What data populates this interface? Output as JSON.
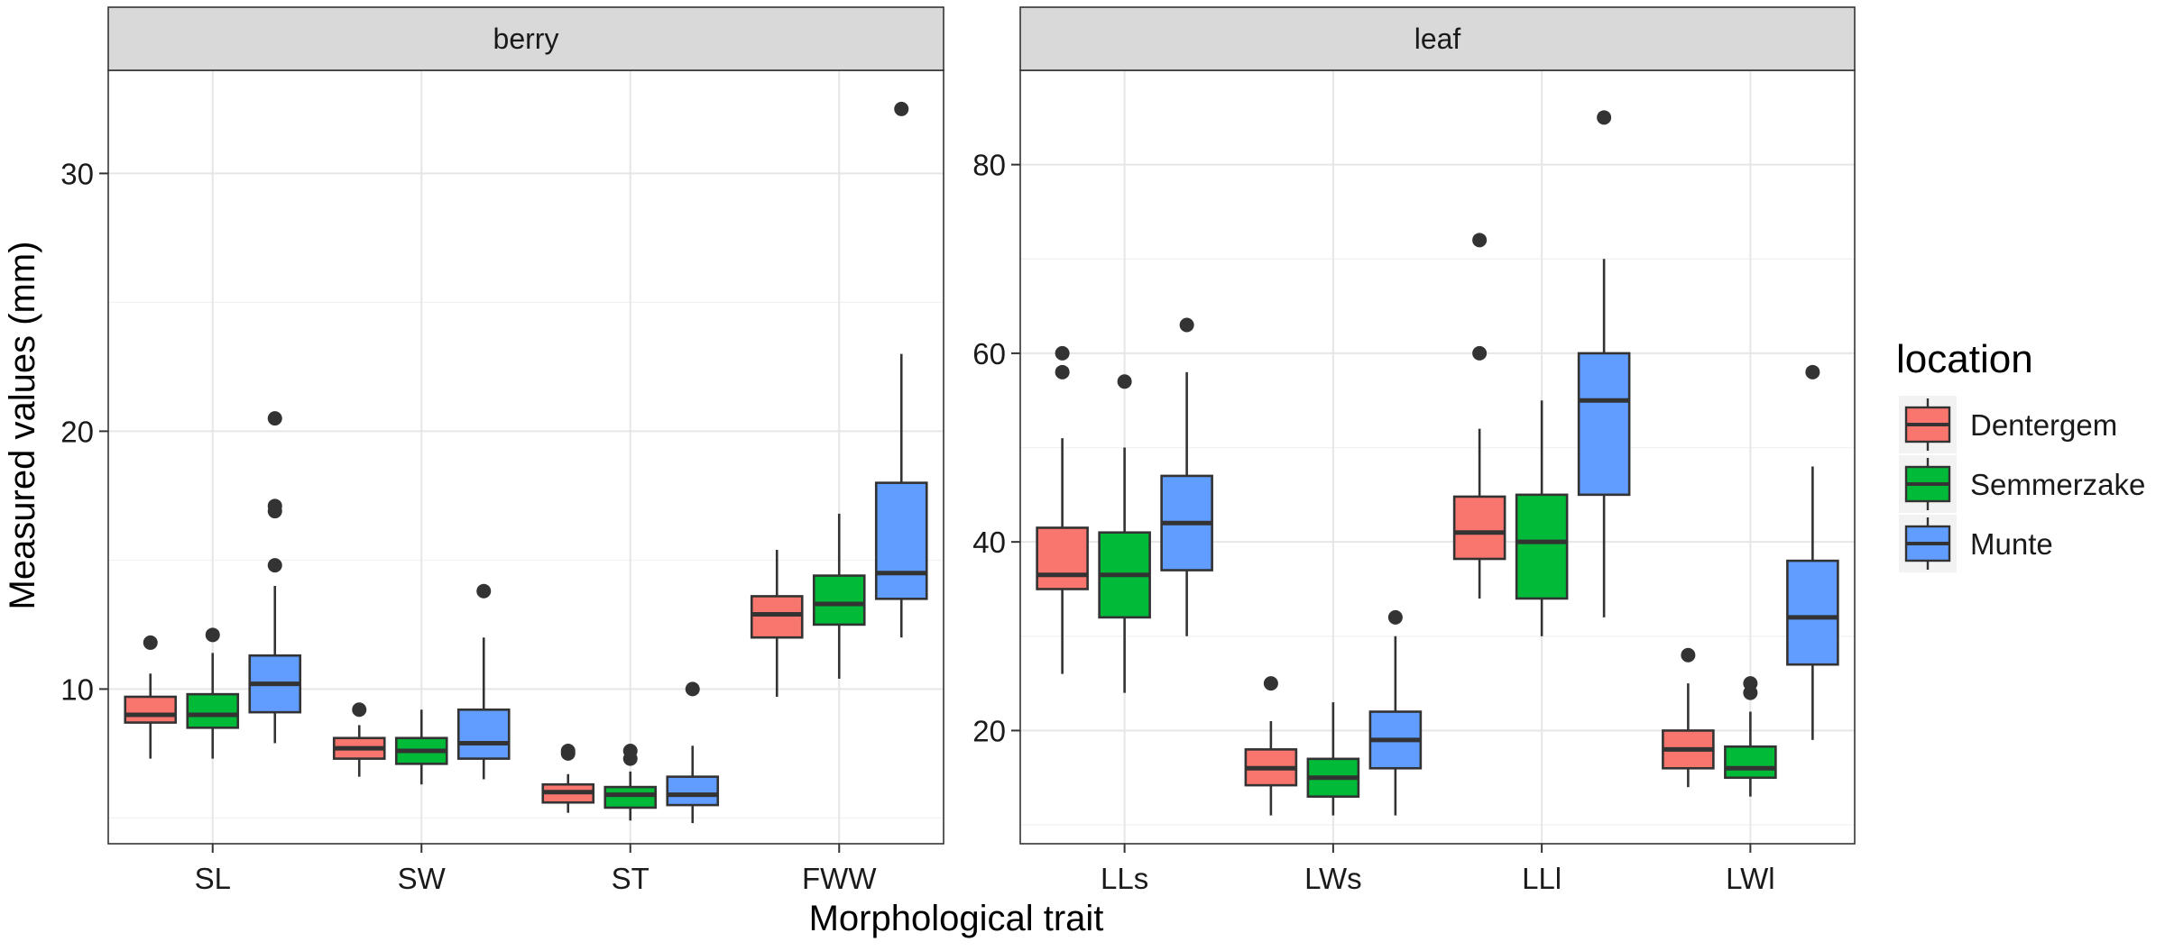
{
  "chart_data": {
    "type": "boxplot",
    "ylabel": "Measured values (mm)",
    "xlabel": "Morphological trait",
    "legend": {
      "title": "location",
      "position": "right",
      "entries": [
        {
          "name": "Dentergem",
          "color": "#F8766D"
        },
        {
          "name": "Semmerzake",
          "color": "#00BA38"
        },
        {
          "name": "Munte",
          "color": "#619CFF"
        }
      ]
    },
    "facets": [
      {
        "title": "berry",
        "ylim": [
          4,
          34
        ],
        "yticks": [
          10,
          20,
          30
        ],
        "categories": [
          "SL",
          "SW",
          "ST",
          "FWW"
        ],
        "groups": [
          [
            {
              "min": 7.3,
              "q1": 8.7,
              "median": 9.0,
              "q3": 9.7,
              "max": 10.6,
              "outliers": [
                11.8
              ]
            },
            {
              "min": 7.3,
              "q1": 8.5,
              "median": 9.0,
              "q3": 9.8,
              "max": 11.4,
              "outliers": [
                12.1
              ]
            },
            {
              "min": 7.9,
              "q1": 9.1,
              "median": 10.2,
              "q3": 11.3,
              "max": 14.0,
              "outliers": [
                14.8,
                16.9,
                17.1,
                20.5
              ]
            }
          ],
          [
            {
              "min": 6.6,
              "q1": 7.3,
              "median": 7.7,
              "q3": 8.1,
              "max": 8.6,
              "outliers": [
                9.2
              ]
            },
            {
              "min": 6.3,
              "q1": 7.1,
              "median": 7.6,
              "q3": 8.1,
              "max": 9.2,
              "outliers": []
            },
            {
              "min": 6.5,
              "q1": 7.3,
              "median": 7.9,
              "q3": 9.2,
              "max": 12.0,
              "outliers": [
                13.8
              ]
            }
          ],
          [
            {
              "min": 5.2,
              "q1": 5.6,
              "median": 6.0,
              "q3": 6.3,
              "max": 6.7,
              "outliers": [
                7.5,
                7.6
              ]
            },
            {
              "min": 4.9,
              "q1": 5.4,
              "median": 5.9,
              "q3": 6.2,
              "max": 6.8,
              "outliers": [
                7.3,
                7.6
              ]
            },
            {
              "min": 4.8,
              "q1": 5.5,
              "median": 5.9,
              "q3": 6.6,
              "max": 7.8,
              "outliers": [
                10.0
              ]
            }
          ],
          [
            {
              "min": 9.7,
              "q1": 12.0,
              "median": 12.9,
              "q3": 13.6,
              "max": 15.4,
              "outliers": []
            },
            {
              "min": 10.4,
              "q1": 12.5,
              "median": 13.3,
              "q3": 14.4,
              "max": 16.8,
              "outliers": []
            },
            {
              "min": 12.0,
              "q1": 13.5,
              "median": 14.5,
              "q3": 18.0,
              "max": 23.0,
              "outliers": [
                32.5
              ]
            }
          ]
        ]
      },
      {
        "title": "leaf",
        "ylim": [
          8,
          90
        ],
        "yticks": [
          20,
          40,
          60,
          80
        ],
        "categories": [
          "LLs",
          "LWs",
          "LLl",
          "LWl"
        ],
        "groups": [
          [
            {
              "min": 26,
              "q1": 35,
              "median": 36.5,
              "q3": 41.5,
              "max": 51,
              "outliers": [
                58,
                60
              ]
            },
            {
              "min": 24,
              "q1": 32,
              "median": 36.5,
              "q3": 41,
              "max": 50,
              "outliers": [
                57
              ]
            },
            {
              "min": 30,
              "q1": 37,
              "median": 42,
              "q3": 47,
              "max": 58,
              "outliers": [
                63
              ]
            }
          ],
          [
            {
              "min": 11,
              "q1": 14.2,
              "median": 16,
              "q3": 18,
              "max": 21,
              "outliers": [
                25
              ]
            },
            {
              "min": 11,
              "q1": 13,
              "median": 15,
              "q3": 17,
              "max": 23,
              "outliers": []
            },
            {
              "min": 11,
              "q1": 16,
              "median": 19,
              "q3": 22,
              "max": 30,
              "outliers": [
                32
              ]
            }
          ],
          [
            {
              "min": 34,
              "q1": 38.2,
              "median": 41,
              "q3": 44.8,
              "max": 52,
              "outliers": [
                60,
                72
              ]
            },
            {
              "min": 30,
              "q1": 34,
              "median": 40,
              "q3": 45,
              "max": 55,
              "outliers": []
            },
            {
              "min": 32,
              "q1": 45,
              "median": 55,
              "q3": 60,
              "max": 70,
              "outliers": [
                85
              ]
            }
          ],
          [
            {
              "min": 14,
              "q1": 16,
              "median": 18,
              "q3": 20,
              "max": 25,
              "outliers": [
                28
              ]
            },
            {
              "min": 13,
              "q1": 15,
              "median": 16,
              "q3": 18.3,
              "max": 22,
              "outliers": [
                24,
                25
              ]
            },
            {
              "min": 19,
              "q1": 27,
              "median": 32,
              "q3": 38,
              "max": 48,
              "outliers": [
                58
              ]
            }
          ]
        ]
      }
    ]
  }
}
